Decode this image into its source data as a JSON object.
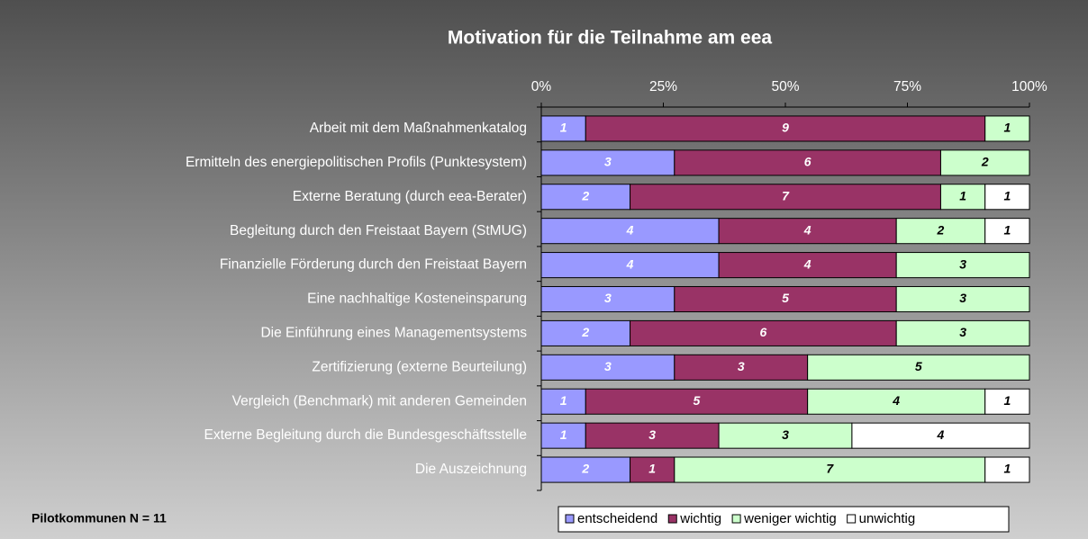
{
  "chart_data": {
    "type": "bar",
    "orientation": "horizontal",
    "stacked": "percent",
    "title": "Motivation für die Teilnahme am eea",
    "note": "Pilotkommunen N = 11",
    "categories": [
      "Arbeit mit dem Maßnahmenkatalog",
      "Ermitteln des energiepolitischen Profils (Punktesystem)",
      "Externe Beratung (durch eea-Berater)",
      "Begleitung durch den Freistaat Bayern (StMUG)",
      "Finanzielle Förderung durch den Freistaat Bayern",
      "Eine nachhaltige Kosteneinsparung",
      "Die Einführung eines Managementsystems",
      "Zertifizierung (externe Beurteilung)",
      "Vergleich (Benchmark) mit anderen Gemeinden",
      "Externe Begleitung durch die Bundesgeschäftsstelle",
      "Die Auszeichnung"
    ],
    "series": [
      {
        "name": "entscheidend",
        "color": "#9999ff",
        "values": [
          1,
          3,
          2,
          4,
          4,
          3,
          2,
          3,
          1,
          1,
          2
        ]
      },
      {
        "name": "wichtig",
        "color": "#993366",
        "values": [
          9,
          6,
          7,
          4,
          4,
          5,
          6,
          3,
          5,
          3,
          1
        ]
      },
      {
        "name": "weniger wichtig",
        "color": "#ccffcc",
        "values": [
          1,
          2,
          1,
          2,
          3,
          3,
          3,
          5,
          4,
          3,
          7
        ]
      },
      {
        "name": "unwichtig",
        "color": "#ffffff",
        "values": [
          null,
          null,
          1,
          1,
          null,
          null,
          null,
          null,
          1,
          4,
          1
        ]
      }
    ],
    "xlim": [
      0,
      100
    ],
    "xticks": [
      {
        "value": 0,
        "label": "0%"
      },
      {
        "value": 25,
        "label": "25%"
      },
      {
        "value": 50,
        "label": "50%"
      },
      {
        "value": 75,
        "label": "75%"
      },
      {
        "value": 100,
        "label": "100%"
      }
    ],
    "legend": "bottom"
  }
}
